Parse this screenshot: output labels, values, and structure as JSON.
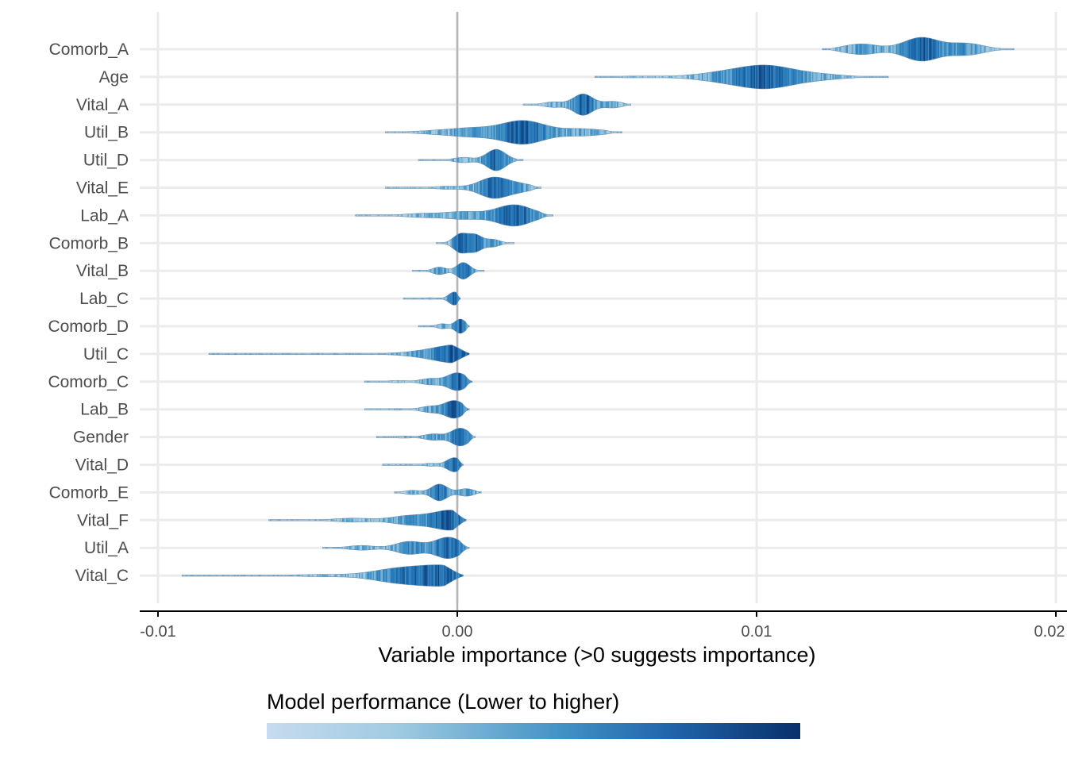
{
  "chart_data": {
    "type": "violin",
    "title": "",
    "xlabel": "Variable importance (>0 suggests importance)",
    "ylabel": "",
    "xlim": [
      -0.0105,
      0.02
    ],
    "xticks": [
      -0.01,
      0.0,
      0.01,
      0.02
    ],
    "xtick_labels": [
      "-0.01",
      "0.00",
      "0.01",
      "0.02"
    ],
    "reference_line_x": 0.0,
    "grid": "horizontal",
    "legend": {
      "title": "Model performance (Lower to higher)",
      "placement": "bottom",
      "gradient": [
        "#c6dbef",
        "#9ecae1",
        "#4292c6",
        "#2171b5",
        "#08306b"
      ]
    },
    "series": [
      {
        "name": "Comorb_A",
        "min": 0.0122,
        "max": 0.0186,
        "peaks": [
          [
            0.0155,
            1.0
          ],
          [
            0.0135,
            0.45
          ],
          [
            0.017,
            0.5
          ]
        ],
        "width": 1.0
      },
      {
        "name": "Age",
        "min": 0.0046,
        "max": 0.0144,
        "peaks": [
          [
            0.0103,
            1.0
          ],
          [
            0.0088,
            0.35
          ],
          [
            0.012,
            0.25
          ],
          [
            0.006,
            0.08
          ]
        ],
        "width": 1.0
      },
      {
        "name": "Vital_A",
        "min": 0.0022,
        "max": 0.0058,
        "peaks": [
          [
            0.0042,
            1.0
          ],
          [
            0.0032,
            0.25
          ],
          [
            0.0052,
            0.3
          ]
        ],
        "width": 0.9
      },
      {
        "name": "Util_B",
        "min": -0.0024,
        "max": 0.0055,
        "peaks": [
          [
            0.0022,
            1.0
          ],
          [
            0.0005,
            0.35
          ],
          [
            0.0042,
            0.3
          ],
          [
            -0.0008,
            0.12
          ]
        ],
        "width": 1.0
      },
      {
        "name": "Util_D",
        "min": -0.0013,
        "max": 0.0022,
        "peaks": [
          [
            0.0013,
            1.0
          ],
          [
            0.0002,
            0.25
          ]
        ],
        "width": 0.9
      },
      {
        "name": "Vital_E",
        "min": -0.0024,
        "max": 0.0028,
        "peaks": [
          [
            0.0012,
            1.0
          ],
          [
            -0.0003,
            0.15
          ],
          [
            0.0021,
            0.35
          ]
        ],
        "width": 0.9
      },
      {
        "name": "Lab_A",
        "min": -0.0034,
        "max": 0.0032,
        "peaks": [
          [
            0.0019,
            1.0
          ],
          [
            0.0002,
            0.35
          ],
          [
            -0.0012,
            0.18
          ]
        ],
        "width": 0.9
      },
      {
        "name": "Comorb_B",
        "min": -0.0007,
        "max": 0.0019,
        "peaks": [
          [
            0.0001,
            1.0
          ],
          [
            0.0006,
            0.9
          ],
          [
            0.0012,
            0.4
          ]
        ],
        "width": 0.85
      },
      {
        "name": "Vital_B",
        "min": -0.0015,
        "max": 0.0009,
        "peaks": [
          [
            0.0002,
            1.0
          ],
          [
            -0.0006,
            0.45
          ]
        ],
        "width": 0.7
      },
      {
        "name": "Lab_C",
        "min": -0.0018,
        "max": 0.0001,
        "peaks": [
          [
            -0.0001,
            1.0
          ],
          [
            -0.0009,
            0.12
          ]
        ],
        "width": 0.55
      },
      {
        "name": "Comorb_D",
        "min": -0.0013,
        "max": 0.0004,
        "peaks": [
          [
            0.0001,
            1.0
          ],
          [
            -0.0005,
            0.35
          ]
        ],
        "width": 0.6
      },
      {
        "name": "Util_C",
        "min": -0.0083,
        "max": 0.0004,
        "peaks": [
          [
            0.0001,
            1.0
          ],
          [
            -0.0012,
            0.2
          ],
          [
            -0.004,
            0.03
          ]
        ],
        "width": 0.75
      },
      {
        "name": "Comorb_C",
        "min": -0.0031,
        "max": 0.0005,
        "peaks": [
          [
            0.0,
            1.0
          ],
          [
            -0.0009,
            0.35
          ],
          [
            -0.002,
            0.12
          ]
        ],
        "width": 0.75
      },
      {
        "name": "Lab_B",
        "min": -0.0031,
        "max": 0.0004,
        "peaks": [
          [
            -0.0001,
            1.0
          ],
          [
            -0.0009,
            0.35
          ],
          [
            -0.002,
            0.08
          ]
        ],
        "width": 0.75
      },
      {
        "name": "Gender",
        "min": -0.0027,
        "max": 0.0006,
        "peaks": [
          [
            0.0001,
            1.0
          ],
          [
            -0.0008,
            0.35
          ],
          [
            -0.0018,
            0.12
          ]
        ],
        "width": 0.75
      },
      {
        "name": "Vital_D",
        "min": -0.0025,
        "max": 0.0002,
        "peaks": [
          [
            -0.0001,
            1.0
          ],
          [
            -0.0009,
            0.2
          ],
          [
            -0.0018,
            0.1
          ]
        ],
        "width": 0.6
      },
      {
        "name": "Comorb_E",
        "min": -0.0021,
        "max": 0.0008,
        "peaks": [
          [
            -0.0006,
            1.0
          ],
          [
            0.0003,
            0.45
          ],
          [
            -0.0015,
            0.25
          ]
        ],
        "width": 0.7
      },
      {
        "name": "Vital_F",
        "min": -0.0063,
        "max": 0.0003,
        "peaks": [
          [
            -0.0002,
            1.0
          ],
          [
            -0.0016,
            0.45
          ],
          [
            -0.0035,
            0.2
          ],
          [
            -0.0055,
            0.06
          ]
        ],
        "width": 0.85
      },
      {
        "name": "Util_A",
        "min": -0.0045,
        "max": 0.0004,
        "peaks": [
          [
            -0.0003,
            1.0
          ],
          [
            -0.0016,
            0.6
          ],
          [
            -0.0032,
            0.22
          ]
        ],
        "width": 0.9
      },
      {
        "name": "Vital_C",
        "min": -0.0092,
        "max": 0.0002,
        "peaks": [
          [
            -0.0004,
            1.0
          ],
          [
            -0.002,
            0.7
          ],
          [
            -0.0045,
            0.12
          ],
          [
            -0.008,
            0.05
          ]
        ],
        "width": 0.9
      }
    ]
  }
}
